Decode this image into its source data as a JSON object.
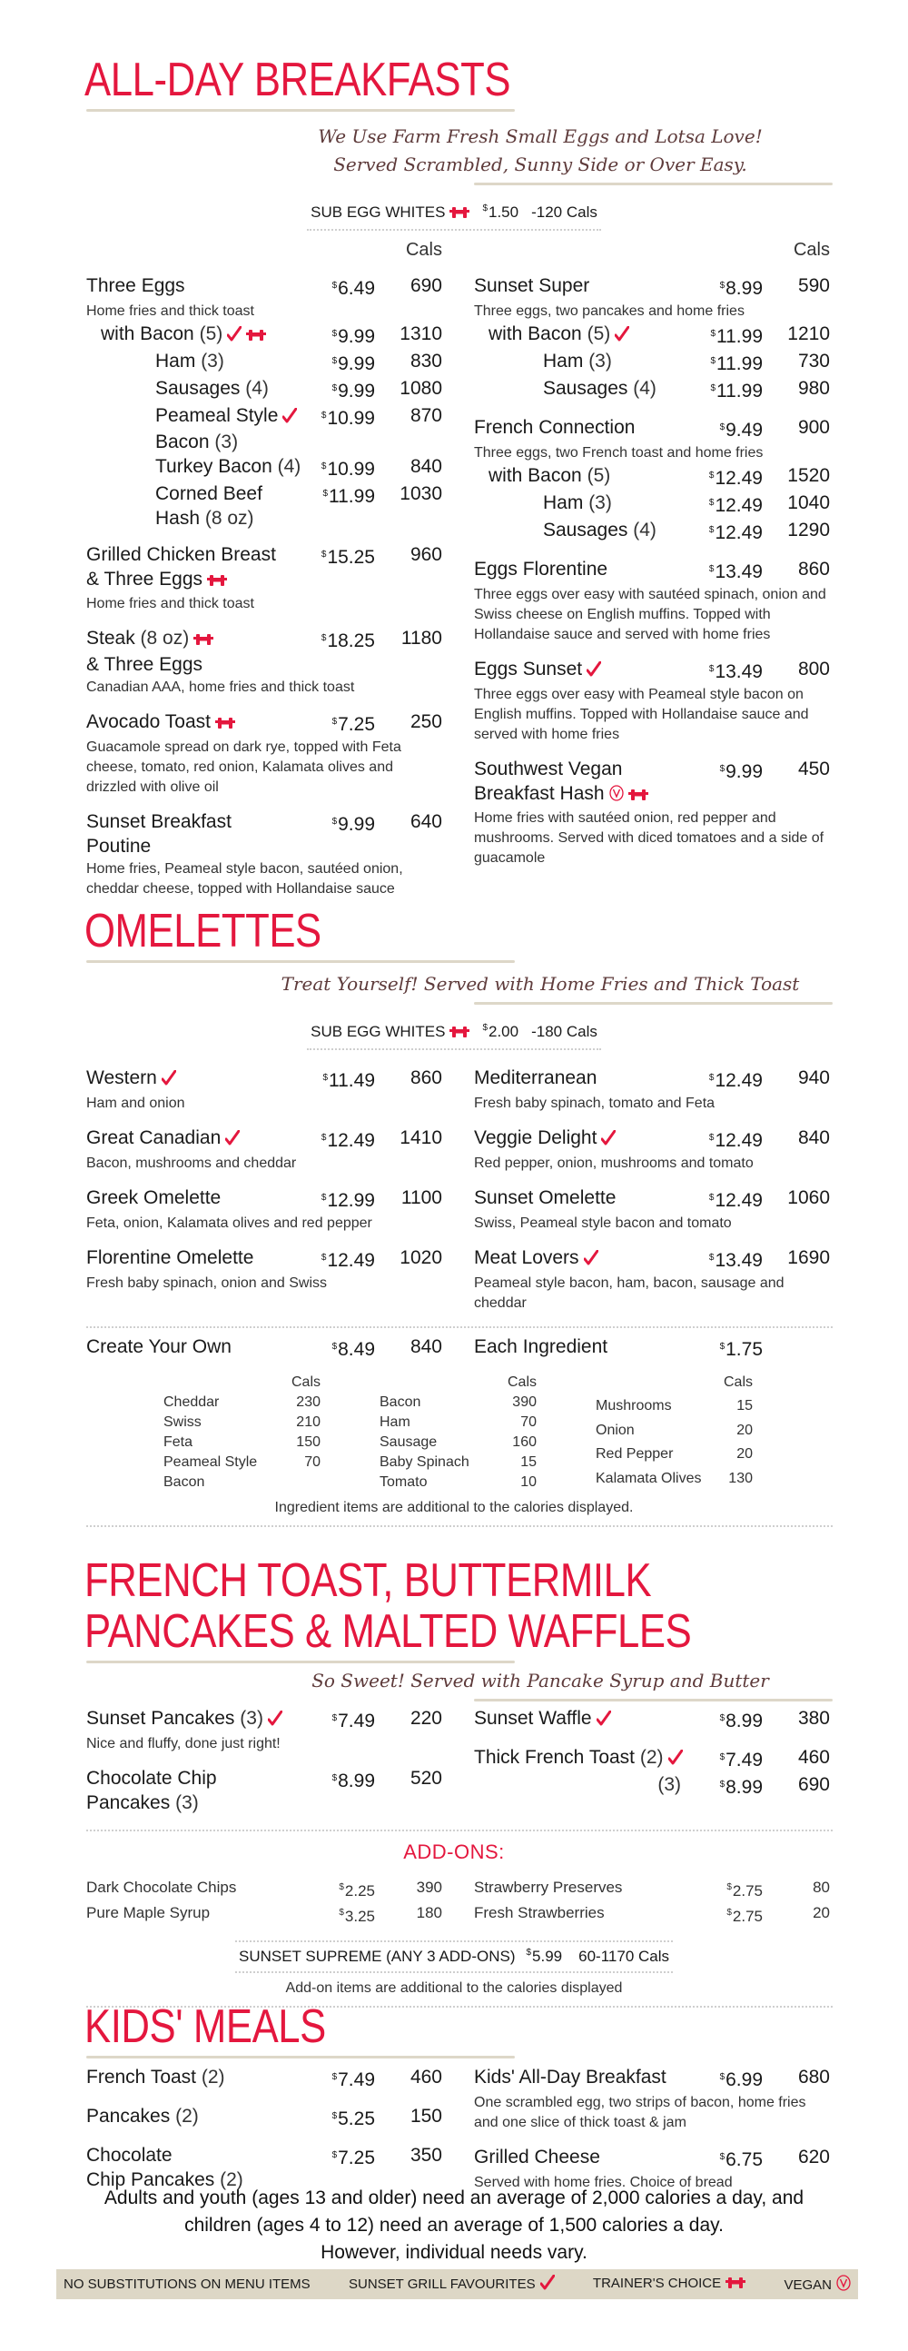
{
  "currency": "$",
  "colors": {
    "accent": "#e4173e",
    "script": "#5e3b3b",
    "rule": "#ddd7c8",
    "footer_bg": "#ddd7c6"
  },
  "breakfasts": {
    "title": "ALL-DAY BREAKFASTS",
    "tagline": [
      "We Use Farm Fresh Small Eggs and Lotsa Love!",
      "Served Scrambled, Sunny Side or Over Easy."
    ],
    "sub": {
      "label": "SUB EGG WHITES",
      "badges": [
        "trainer"
      ],
      "price": "1.50",
      "cals": "-120 Cals"
    },
    "cals_header": "Cals",
    "left": [
      {
        "name": "Three Eggs",
        "price": "6.49",
        "cals": "690",
        "desc": "Home fries and thick toast"
      },
      {
        "name": "with Bacon",
        "qual": "(5)",
        "badges": [
          "favourite",
          "trainer"
        ],
        "price": "9.99",
        "cals": "1310",
        "indent": 1
      },
      {
        "name": "Ham",
        "qual": "(3)",
        "price": "9.99",
        "cals": "830",
        "indent": 2
      },
      {
        "name": "Sausages",
        "qual": "(4)",
        "price": "9.99",
        "cals": "1080",
        "indent": 2
      },
      {
        "name": "Peameal Style",
        "badges": [
          "favourite"
        ],
        "line2": "Bacon",
        "qual2": "(3)",
        "price": "10.99",
        "cals": "870",
        "indent": 2
      },
      {
        "name": "Turkey Bacon",
        "qual": "(4)",
        "price": "10.99",
        "cals": "840",
        "indent": 2
      },
      {
        "name": "Corned Beef",
        "line2": "Hash",
        "qual2": "(8 oz)",
        "price": "11.99",
        "cals": "1030",
        "indent": 2
      },
      {
        "name": "Grilled Chicken Breast",
        "line2": "& Three Eggs",
        "badges2": [
          "trainer"
        ],
        "price": "15.25",
        "cals": "960",
        "desc": "Home fries and thick toast"
      },
      {
        "name": "Steak",
        "qual": "(8 oz)",
        "badges": [
          "trainer"
        ],
        "line2": "& Three Eggs",
        "price": "18.25",
        "cals": "1180",
        "desc": "Canadian AAA, home fries and thick toast"
      },
      {
        "name": "Avocado Toast",
        "badges": [
          "trainer"
        ],
        "price": "7.25",
        "cals": "250",
        "desc": "Guacamole spread on dark rye, topped with Feta cheese, tomato, red onion, Kalamata olives and drizzled with olive oil"
      },
      {
        "name": "Sunset Breakfast",
        "line2": "Poutine",
        "price": "9.99",
        "cals": "640",
        "desc": "Home fries, Peameal style bacon, sautéed onion, cheddar cheese, topped with Hollandaise sauce"
      }
    ],
    "right": [
      {
        "name": "Sunset Super",
        "price": "8.99",
        "cals": "590",
        "desc": "Three eggs, two pancakes and home fries"
      },
      {
        "name": "with Bacon",
        "qual": "(5)",
        "badges": [
          "favourite"
        ],
        "price": "11.99",
        "cals": "1210",
        "indent": 1
      },
      {
        "name": "Ham",
        "qual": "(3)",
        "price": "11.99",
        "cals": "730",
        "indent": 2
      },
      {
        "name": "Sausages",
        "qual": "(4)",
        "price": "11.99",
        "cals": "980",
        "indent": 2
      },
      {
        "name": "French Connection",
        "price": "9.49",
        "cals": "900",
        "desc": "Three eggs, two French toast and home fries"
      },
      {
        "name": "with Bacon",
        "qual": "(5)",
        "price": "12.49",
        "cals": "1520",
        "indent": 1
      },
      {
        "name": "Ham",
        "qual": "(3)",
        "price": "12.49",
        "cals": "1040",
        "indent": 2
      },
      {
        "name": "Sausages",
        "qual": "(4)",
        "price": "12.49",
        "cals": "1290",
        "indent": 2
      },
      {
        "name": "Eggs Florentine",
        "price": "13.49",
        "cals": "860",
        "desc": "Three eggs over easy with sautéed spinach, onion and Swiss cheese on English muffins. Topped with Hollandaise sauce and served with home fries"
      },
      {
        "name": "Eggs Sunset",
        "badges": [
          "favourite"
        ],
        "price": "13.49",
        "cals": "800",
        "desc": "Three eggs over easy with Peameal style bacon on English muffins. Topped with Hollandaise sauce and served with home fries"
      },
      {
        "name": "Southwest Vegan",
        "line2": "Breakfast Hash",
        "badges2": [
          "vegan",
          "trainer"
        ],
        "price": "9.99",
        "cals": "450",
        "desc": "Home fries with sautéed onion, red pepper and mushrooms. Served with diced tomatoes and a side of guacamole"
      }
    ]
  },
  "omelettes": {
    "title": "OMELETTES",
    "tagline": [
      "Treat Yourself! Served with Home Fries and Thick Toast"
    ],
    "sub": {
      "label": "SUB EGG WHITES",
      "badges": [
        "trainer"
      ],
      "price": "2.00",
      "cals": "-180 Cals"
    },
    "left": [
      {
        "name": "Western",
        "badges": [
          "favourite"
        ],
        "price": "11.49",
        "cals": "860",
        "desc": "Ham and onion"
      },
      {
        "name": "Great Canadian",
        "badges": [
          "favourite"
        ],
        "price": "12.49",
        "cals": "1410",
        "desc": "Bacon, mushrooms and cheddar"
      },
      {
        "name": "Greek Omelette",
        "price": "12.99",
        "cals": "1100",
        "desc": "Feta, onion, Kalamata olives and red pepper"
      },
      {
        "name": "Florentine Omelette",
        "price": "12.49",
        "cals": "1020",
        "desc": "Fresh baby spinach, onion and Swiss"
      }
    ],
    "right": [
      {
        "name": "Mediterranean",
        "price": "12.49",
        "cals": "940",
        "desc": "Fresh baby spinach, tomato and Feta"
      },
      {
        "name": "Veggie Delight",
        "badges": [
          "favourite"
        ],
        "price": "12.49",
        "cals": "840",
        "desc": "Red pepper, onion, mushrooms and tomato"
      },
      {
        "name": "Sunset Omelette",
        "price": "12.49",
        "cals": "1060",
        "desc": "Swiss, Peameal style bacon and tomato"
      },
      {
        "name": "Meat Lovers",
        "badges": [
          "favourite"
        ],
        "price": "13.49",
        "cals": "1690",
        "desc": "Peameal style bacon, ham, bacon, sausage and cheddar"
      }
    ],
    "create": {
      "left": [
        {
          "name": "Create Your Own",
          "price": "8.49",
          "cals": "840"
        }
      ],
      "right": [
        {
          "name": "Each Ingredient",
          "price": "1.75"
        }
      ]
    },
    "ingredients": [
      {
        "header": "Cals",
        "rows": [
          {
            "name": "Cheddar",
            "cals": "230"
          },
          {
            "name": "Swiss",
            "cals": "210"
          },
          {
            "name": "Feta",
            "cals": "150"
          },
          {
            "name": "Peameal Style",
            "cals": "70"
          },
          {
            "name": "Bacon",
            "cals": ""
          }
        ]
      },
      {
        "header": "Cals",
        "rows": [
          {
            "name": "Bacon",
            "cals": "390"
          },
          {
            "name": "Ham",
            "cals": "70"
          },
          {
            "name": "Sausage",
            "cals": "160"
          },
          {
            "name": "Baby Spinach",
            "cals": "15"
          },
          {
            "name": "Tomato",
            "cals": "10"
          }
        ]
      },
      {
        "header": "Cals",
        "rows": [
          {
            "name": "Mushrooms",
            "cals": "15"
          },
          {
            "name": "Onion",
            "cals": "20"
          },
          {
            "name": "Red Pepper",
            "cals": "20"
          },
          {
            "name": "Kalamata Olives",
            "cals": "130"
          }
        ]
      }
    ],
    "ingredients_note": "Ingredient items are additional to the calories displayed."
  },
  "sweets": {
    "title_lines": [
      "FRENCH TOAST, BUTTERMILK",
      "PANCAKES & MALTED WAFFLES"
    ],
    "tagline": [
      "So Sweet! Served with Pancake Syrup and Butter"
    ],
    "left": [
      {
        "name": "Sunset Pancakes",
        "qual": "(3)",
        "badges": [
          "favourite"
        ],
        "price": "7.49",
        "cals": "220",
        "desc": "Nice and fluffy, done just right!"
      },
      {
        "name": "Chocolate Chip",
        "line2": "Pancakes",
        "qual2": "(3)",
        "price": "8.99",
        "cals": "520"
      }
    ],
    "right": [
      {
        "name": "Sunset Waffle",
        "badges": [
          "favourite"
        ],
        "price": "8.99",
        "cals": "380"
      },
      {
        "name": "Thick French Toast",
        "qual": "(2)",
        "badges": [
          "favourite"
        ],
        "price": "7.49",
        "cals": "460"
      },
      {
        "qual": "(3)",
        "price": "8.99",
        "cals": "690"
      }
    ],
    "addons_title": "ADD-ONS:",
    "addons_left": [
      {
        "name": "Dark Chocolate Chips",
        "price": "2.25",
        "cals": "390"
      },
      {
        "name": "Pure Maple Syrup",
        "price": "3.25",
        "cals": "180"
      }
    ],
    "addons_right": [
      {
        "name": "Strawberry Preserves",
        "price": "2.75",
        "cals": "80"
      },
      {
        "name": "Fresh Strawberries",
        "price": "2.75",
        "cals": "20"
      }
    ],
    "supreme": {
      "label": "SUNSET SUPREME (ANY 3 ADD-ONS)",
      "price": "5.99",
      "cals": "60-1170 Cals"
    },
    "addons_note": "Add-on items are additional to the calories displayed"
  },
  "kids": {
    "title": "KIDS' MEALS",
    "left": [
      {
        "name": "French Toast",
        "qual": "(2)",
        "price": "7.49",
        "cals": "460"
      },
      {
        "name": "Pancakes",
        "qual": "(2)",
        "price": "5.25",
        "cals": "150"
      },
      {
        "name": "Chocolate",
        "line2": "Chip Pancakes",
        "qual2": "(2)",
        "price": "7.25",
        "cals": "350"
      }
    ],
    "right": [
      {
        "name": "Kids' All-Day Breakfast",
        "price": "6.99",
        "cals": "680",
        "desc": "One scrambled egg, two strips of bacon, home fries and one slice of thick toast & jam"
      },
      {
        "name": "Grilled Cheese",
        "price": "6.75",
        "cals": "620",
        "desc": "Served with home fries. Choice of bread"
      }
    ]
  },
  "calorie_note": [
    "Adults and youth (ages 13 and older) need an average of 2,000 calories a day, and",
    "children (ages 4 to 12) need an average of 1,500 calories a day.",
    "However, individual needs vary."
  ],
  "legend": {
    "no_subs": "NO SUBSTITUTIONS ON MENU ITEMS",
    "favourites": "SUNSET GRILL FAVOURITES",
    "trainer": "TRAINER'S CHOICE",
    "vegan": "VEGAN"
  }
}
